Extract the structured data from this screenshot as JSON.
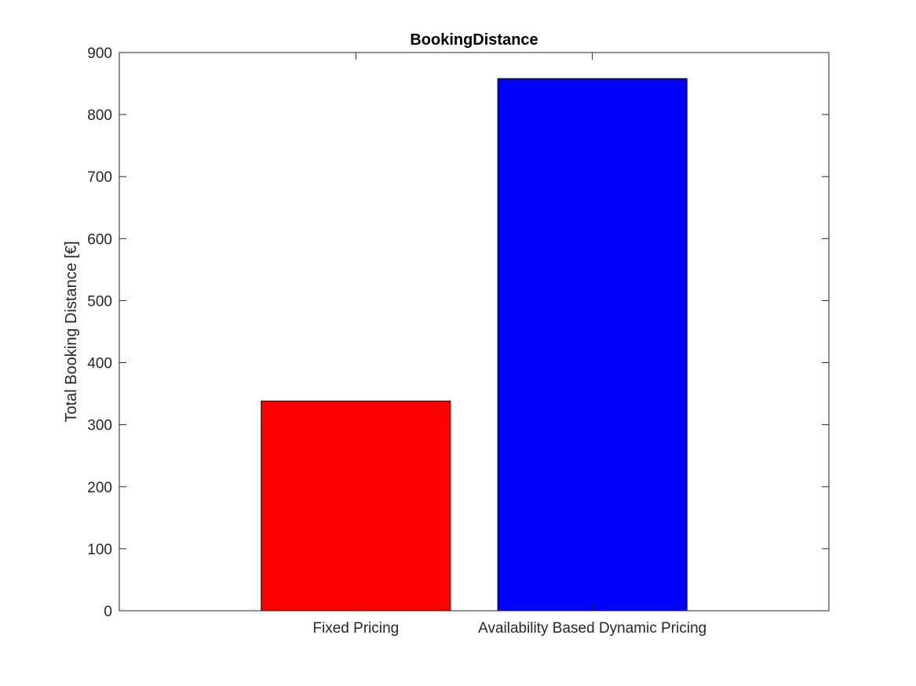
{
  "chart_data": {
    "type": "bar",
    "title": "BookingDistance",
    "xlabel": "",
    "ylabel": "Total Booking Distance [€]",
    "categories": [
      "Fixed Pricing",
      "Availability Based Dynamic Pricing"
    ],
    "values": [
      338,
      858
    ],
    "colors": [
      "#ff0000",
      "#0000ff"
    ],
    "ylim": [
      0,
      900
    ],
    "yticks": [
      0,
      100,
      200,
      300,
      400,
      500,
      600,
      700,
      800,
      900
    ],
    "xlim": [
      0,
      3
    ],
    "grid": false,
    "legend": "none"
  }
}
